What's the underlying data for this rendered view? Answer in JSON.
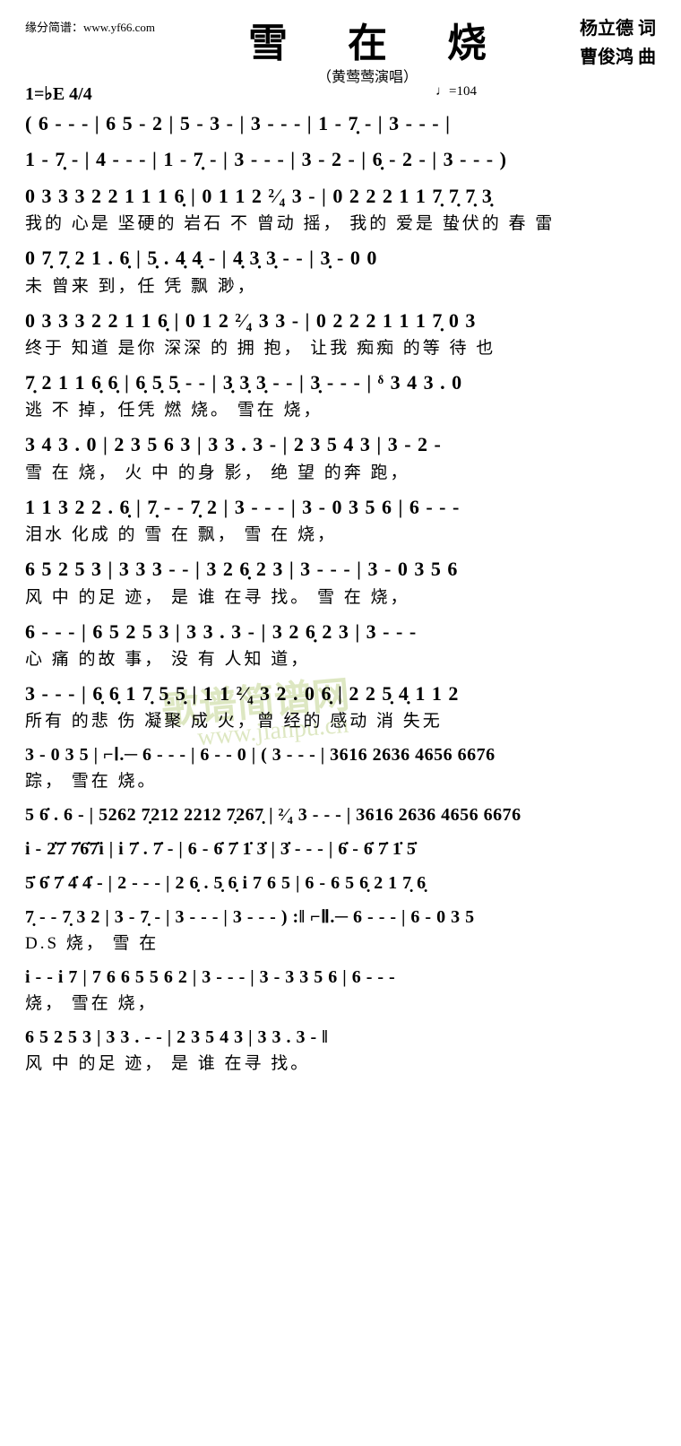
{
  "header": {
    "source_url": "缘分简谱：www.yf66.com",
    "title": "雪 在 烧",
    "subtitle": "（黄莺莺演唱）",
    "lyricist": "杨立德 词",
    "composer": "曹俊鸿 曲",
    "key_signature": "1=♭E 4/4",
    "tempo": "♩=104"
  },
  "watermark": {
    "main": "歌谱简谱网",
    "sub": "www.jianpu.cn"
  },
  "lines": [
    {
      "notes": "( 6 - - - | 6 5 - 2 | 5 - 3 - | 3 - - - | 1 - 7̣ - | 3 - - - |",
      "lyrics": ""
    },
    {
      "notes": "1 - 7̣ - | 4 - - - | 1 - 7̣ - | 3 - - - | 3 - 2 - | 6̣ - 2 - | 3 - - - )",
      "lyrics": ""
    },
    {
      "notes": "0 3 3 3 2 2 1 1 1 6̣ | 0 1 1 2 ²⁄₄ 3 - | 0 2 2 2 1 1 7̣ 7̣ 7̣ 3̣",
      "lyrics": "我的 心是 坚硬的  岩石  不 曾动  摇，    我的 爱是 蛰伏的 春 雷"
    },
    {
      "notes": "0 7̣ 7̣ 2 1 . 6̣ | 5̣ . 4̣ 4̣ - | 4̣ 3̣ 3̣ - - | 3̣ - 0 0",
      "lyrics": "未 曾来 到，任 凭   飘      渺，"
    },
    {
      "notes": "0 3 3 3 2 2 1 1 6̣ | 0 1 2 ²⁄₄ 3 3 - | 0 2 2 2 1 1 1 7̣ 0 3",
      "lyrics": "终于 知道 是你 深深   的 拥 抱，    让我 痴痴 的等 待 也"
    },
    {
      "notes": "7̣ 2 1 1 6̣ 6̣ | 6̣ 5̣ 5̣ - - | 3̣ 3̣ 3̣ - - | 3̣ - - - | ᵟ 3 4 3 . 0",
      "lyrics": "逃 不 掉，任凭  燃         烧。               雪在 烧，"
    },
    {
      "notes": "3 4 3 . 0 | 2 3 5 6 3 | 3 3 . 3 - | 2 3 5 4 3 | 3 - 2 -",
      "lyrics": "雪 在 烧，  火 中 的身  影，     绝 望 的奔  跑，"
    },
    {
      "notes": "1 1 3 2 2 . 6̣ | 7̣ - - 7̣ 2 | 3 - - - | 3 - 0 3 5 6 | 6 - - -",
      "lyrics": "泪水 化成  的 雪   在  飘，          雪 在 烧，"
    },
    {
      "notes": "6 5 2 5 3 | 3 3 3 - - | 3 2 6̣ 2 3 | 3 - - - | 3 - 0 3 5 6",
      "lyrics": "风 中 的足  迹，     是 谁 在寻  找。        雪 在 烧，"
    },
    {
      "notes": "6 - - - | 6 5 2 5 3 | 3 3 . 3 - | 3 2 6̣ 2 3 | 3 - - -",
      "lyrics": "        心 痛 的故   事，    没 有 人知  道，"
    },
    {
      "notes": "3 - - - | 6̣ 6̣ 1 7̣ 5̣ 5̣ | 1 1 ²⁄₄ 3 2 . 0 6̣ | 2 2 5̣ 4̣ 1 1 2",
      "lyrics": "       所有 的悲 伤  凝聚  成 火，曾 经的 感动  消 失无"
    },
    {
      "notes": "3 - 0 3 5 | ⌐Ⅰ.─ 6 - - - | 6 - - 0 | ( 3 - - - | 3616 2636 4656 6676",
      "lyrics": "踪，  雪在 烧。"
    },
    {
      "notes": "5 6̇ . 6 - | 5262 7̣212 2212 7̣267̣ | ²⁄₄ 3 - - - | 3616 2636 4656 6676",
      "lyrics": ""
    },
    {
      "notes": "i - 2̇7̇ 7̇6̇7̇i | i 7̇ . 7̇ - | 6 - 6̇ 7̇ 1̇ 3̇ | 3̇ - - - | 6̇ - 6̇ 7̇ 1̇ 5̇",
      "lyrics": ""
    },
    {
      "notes": "5̇ 6̇ 7̇ 4̇ 4̇ - | 2 - - - | 2 6̣ . 5̣ 6̣ i 7 6 5 | 6 - 6 5 6̣ 2 1 7̣ 6̣",
      "lyrics": ""
    },
    {
      "notes": "7̣ - - 7̣ 3 2 | 3 - 7̣ - | 3 - - - | 3 - - - ) :‖ ⌐Ⅱ.─ 6 - - - | 6 - 0 3 5",
      "lyrics": "                              D.S 烧，         雪 在"
    },
    {
      "notes": "i - - i 7 | 7 6 6 5 5 6 2 | 3 - - - | 3 - 3 3 5 6 | 6 - - -",
      "lyrics": "烧，                          雪在 烧，"
    },
    {
      "notes": "6 5 2 5 3 | 3 3 . - - | 2 3 5 4 3 | 3 3 . 3 - ‖",
      "lyrics": "风 中 的足   迹，     是 谁 在寻  找。"
    }
  ]
}
